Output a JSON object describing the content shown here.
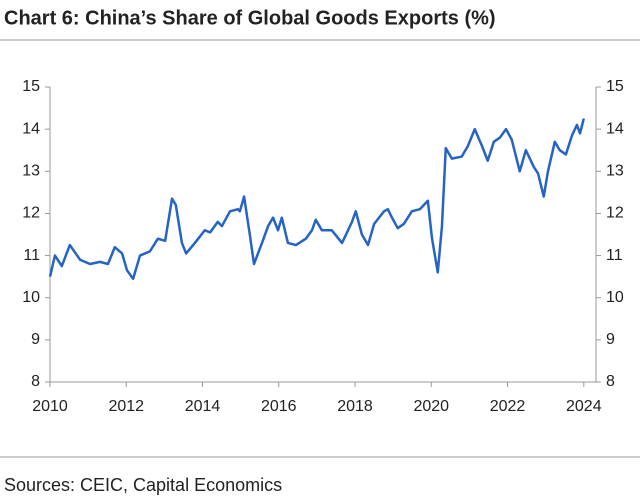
{
  "chart_data": {
    "type": "line",
    "title": "Chart 6: China’s Share of Global Goods Exports (%)",
    "source": "Sources: CEIC, Capital Economics",
    "color": "#2563c4",
    "x": [
      2010.0,
      2010.13,
      2010.31,
      2010.52,
      2010.79,
      2011.05,
      2011.31,
      2011.52,
      2011.7,
      2011.89,
      2012.02,
      2012.18,
      2012.36,
      2012.62,
      2012.83,
      2013.02,
      2013.2,
      2013.3,
      2013.46,
      2013.57,
      2013.8,
      2014.06,
      2014.2,
      2014.4,
      2014.51,
      2014.72,
      2014.93,
      2014.98,
      2015.09,
      2015.24,
      2015.35,
      2015.56,
      2015.72,
      2015.85,
      2015.98,
      2016.08,
      2016.24,
      2016.45,
      2016.71,
      2016.87,
      2016.97,
      2017.13,
      2017.39,
      2017.66,
      2017.92,
      2018.02,
      2018.18,
      2018.34,
      2018.5,
      2018.76,
      2018.86,
      2018.97,
      2019.12,
      2019.28,
      2019.49,
      2019.7,
      2019.91,
      2020.02,
      2020.17,
      2020.28,
      2020.38,
      2020.54,
      2020.8,
      2020.96,
      2021.14,
      2021.33,
      2021.48,
      2021.64,
      2021.8,
      2021.96,
      2022.11,
      2022.32,
      2022.48,
      2022.69,
      2022.8,
      2022.95,
      2023.06,
      2023.24,
      2023.37,
      2023.53,
      2023.69,
      2023.82,
      2023.9,
      2024.0
    ],
    "values": [
      10.5,
      11.0,
      10.75,
      11.25,
      10.9,
      10.8,
      10.85,
      10.8,
      11.2,
      11.05,
      10.65,
      10.45,
      11.0,
      11.1,
      11.4,
      11.35,
      12.35,
      12.2,
      11.3,
      11.05,
      11.3,
      11.6,
      11.55,
      11.8,
      11.7,
      12.05,
      12.1,
      12.05,
      12.4,
      11.5,
      10.8,
      11.3,
      11.7,
      11.9,
      11.6,
      11.9,
      11.3,
      11.25,
      11.4,
      11.6,
      11.85,
      11.6,
      11.6,
      11.3,
      11.8,
      12.05,
      11.5,
      11.25,
      11.75,
      12.05,
      12.1,
      11.9,
      11.65,
      11.75,
      12.05,
      12.1,
      12.3,
      11.4,
      10.6,
      11.7,
      13.55,
      13.3,
      13.35,
      13.6,
      14.0,
      13.6,
      13.25,
      13.7,
      13.8,
      14.0,
      13.75,
      13.0,
      13.5,
      13.1,
      12.95,
      12.4,
      13.0,
      13.7,
      13.5,
      13.4,
      13.85,
      14.1,
      13.9,
      14.25
    ],
    "xlim": [
      2010,
      2024.32
    ],
    "xticks": [
      2010,
      2012,
      2014,
      2016,
      2018,
      2020,
      2022,
      2024
    ],
    "ylim": [
      8,
      15
    ],
    "yticks": [
      8,
      9,
      10,
      11,
      12,
      13,
      14,
      15
    ],
    "grid": false
  }
}
